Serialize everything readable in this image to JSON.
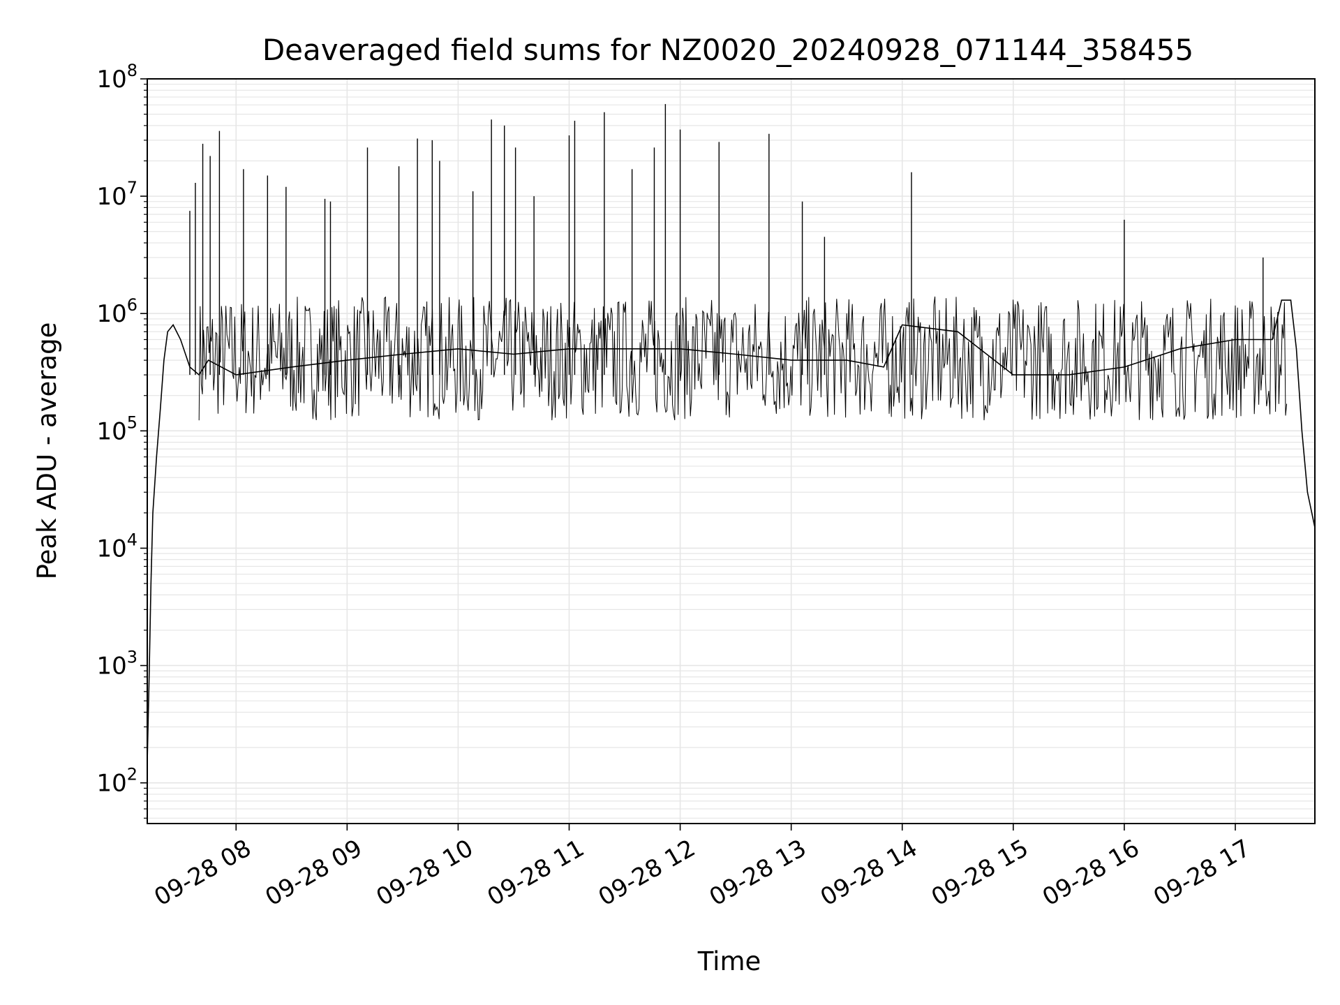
{
  "chart_data": {
    "type": "line",
    "title": "Deaveraged field sums for NZ0020_20240928_071144_358455",
    "xlabel": "Time",
    "ylabel": "Peak ADU - average",
    "y_scale": "log",
    "xlim": [
      "2024-09-28 07:12",
      "2024-09-28 17:43"
    ],
    "ylim": [
      45,
      100000000
    ],
    "grid": true,
    "grid_color": "#e6e6e6",
    "line_color": "#000000",
    "x_ticks": [
      {
        "value": "2024-09-28 08:00",
        "label": "09-28 08"
      },
      {
        "value": "2024-09-28 09:00",
        "label": "09-28 09"
      },
      {
        "value": "2024-09-28 10:00",
        "label": "09-28 10"
      },
      {
        "value": "2024-09-28 11:00",
        "label": "09-28 11"
      },
      {
        "value": "2024-09-28 12:00",
        "label": "09-28 12"
      },
      {
        "value": "2024-09-28 13:00",
        "label": "09-28 13"
      },
      {
        "value": "2024-09-28 14:00",
        "label": "09-28 14"
      },
      {
        "value": "2024-09-28 15:00",
        "label": "09-28 15"
      },
      {
        "value": "2024-09-28 16:00",
        "label": "09-28 16"
      },
      {
        "value": "2024-09-28 17:00",
        "label": "09-28 17"
      }
    ],
    "y_ticks": [
      {
        "value": 100,
        "base": "10",
        "exp": "2"
      },
      {
        "value": 1000,
        "base": "10",
        "exp": "3"
      },
      {
        "value": 10000,
        "base": "10",
        "exp": "4"
      },
      {
        "value": 100000,
        "base": "10",
        "exp": "5"
      },
      {
        "value": 1000000,
        "base": "10",
        "exp": "6"
      },
      {
        "value": 10000000,
        "base": "10",
        "exp": "7"
      },
      {
        "value": 100000000,
        "base": "10",
        "exp": "8"
      }
    ],
    "series": [
      {
        "x": [
          "2024-09-28 07:12",
          "2024-09-28 07:13",
          "2024-09-28 07:14",
          "2024-09-28 07:15",
          "2024-09-28 07:17",
          "2024-09-28 07:19",
          "2024-09-28 07:21",
          "2024-09-28 07:23",
          "2024-09-28 07:26",
          "2024-09-28 07:30",
          "2024-09-28 07:35",
          "2024-09-28 07:40",
          "2024-09-28 07:45",
          "2024-09-28 08:00",
          "2024-09-28 08:30",
          "2024-09-28 09:00",
          "2024-09-28 09:30",
          "2024-09-28 10:00",
          "2024-09-28 10:30",
          "2024-09-28 11:00",
          "2024-09-28 11:30",
          "2024-09-28 12:00",
          "2024-09-28 12:30",
          "2024-09-28 13:00",
          "2024-09-28 13:30",
          "2024-09-28 13:50",
          "2024-09-28 14:00",
          "2024-09-28 14:30",
          "2024-09-28 15:00",
          "2024-09-28 15:30",
          "2024-09-28 16:00",
          "2024-09-28 16:30",
          "2024-09-28 17:00",
          "2024-09-28 17:20",
          "2024-09-28 17:25",
          "2024-09-28 17:30",
          "2024-09-28 17:33",
          "2024-09-28 17:36",
          "2024-09-28 17:39",
          "2024-09-28 17:43"
        ],
        "y": [
          150,
          800,
          5000,
          20000,
          60000,
          150000,
          400000,
          700000,
          800000,
          600000,
          350000,
          300000,
          400000,
          300000,
          350000,
          400000,
          450000,
          500000,
          450000,
          500000,
          500000,
          500000,
          450000,
          400000,
          400000,
          350000,
          800000,
          700000,
          300000,
          300000,
          350000,
          500000,
          600000,
          600000,
          1300000,
          1300000,
          500000,
          100000,
          30000,
          15000
        ]
      }
    ],
    "spikes": [
      {
        "x": "2024-09-28 07:35",
        "y": 7500000
      },
      {
        "x": "2024-09-28 07:38",
        "y": 13000000
      },
      {
        "x": "2024-09-28 07:42",
        "y": 28000000
      },
      {
        "x": "2024-09-28 07:46",
        "y": 22000000
      },
      {
        "x": "2024-09-28 07:51",
        "y": 36000000
      },
      {
        "x": "2024-09-28 08:04",
        "y": 17000000
      },
      {
        "x": "2024-09-28 08:17",
        "y": 15000000
      },
      {
        "x": "2024-09-28 08:27",
        "y": 12000000
      },
      {
        "x": "2024-09-28 08:48",
        "y": 9500000
      },
      {
        "x": "2024-09-28 08:51",
        "y": 9000000
      },
      {
        "x": "2024-09-28 09:11",
        "y": 26000000
      },
      {
        "x": "2024-09-28 09:28",
        "y": 18000000
      },
      {
        "x": "2024-09-28 09:38",
        "y": 31000000
      },
      {
        "x": "2024-09-28 09:46",
        "y": 30000000
      },
      {
        "x": "2024-09-28 09:50",
        "y": 20000000
      },
      {
        "x": "2024-09-28 10:08",
        "y": 11000000
      },
      {
        "x": "2024-09-28 10:18",
        "y": 45000000
      },
      {
        "x": "2024-09-28 10:25",
        "y": 40000000
      },
      {
        "x": "2024-09-28 10:31",
        "y": 26000000
      },
      {
        "x": "2024-09-28 10:41",
        "y": 10000000
      },
      {
        "x": "2024-09-28 11:00",
        "y": 33000000
      },
      {
        "x": "2024-09-28 11:03",
        "y": 44000000
      },
      {
        "x": "2024-09-28 11:19",
        "y": 52000000
      },
      {
        "x": "2024-09-28 11:34",
        "y": 17000000
      },
      {
        "x": "2024-09-28 11:46",
        "y": 26000000
      },
      {
        "x": "2024-09-28 11:52",
        "y": 61000000
      },
      {
        "x": "2024-09-28 12:00",
        "y": 37000000
      },
      {
        "x": "2024-09-28 12:21",
        "y": 29000000
      },
      {
        "x": "2024-09-28 12:48",
        "y": 34000000
      },
      {
        "x": "2024-09-28 13:06",
        "y": 9000000
      },
      {
        "x": "2024-09-28 13:18",
        "y": 4500000
      },
      {
        "x": "2024-09-28 14:05",
        "y": 16000000
      },
      {
        "x": "2024-09-28 16:00",
        "y": 6300000
      },
      {
        "x": "2024-09-28 17:15",
        "y": 3000000
      }
    ],
    "band": {
      "x_start": "2024-09-28 07:40",
      "x_end": "2024-09-28 17:28",
      "low": 80000,
      "high": 1400000
    }
  }
}
